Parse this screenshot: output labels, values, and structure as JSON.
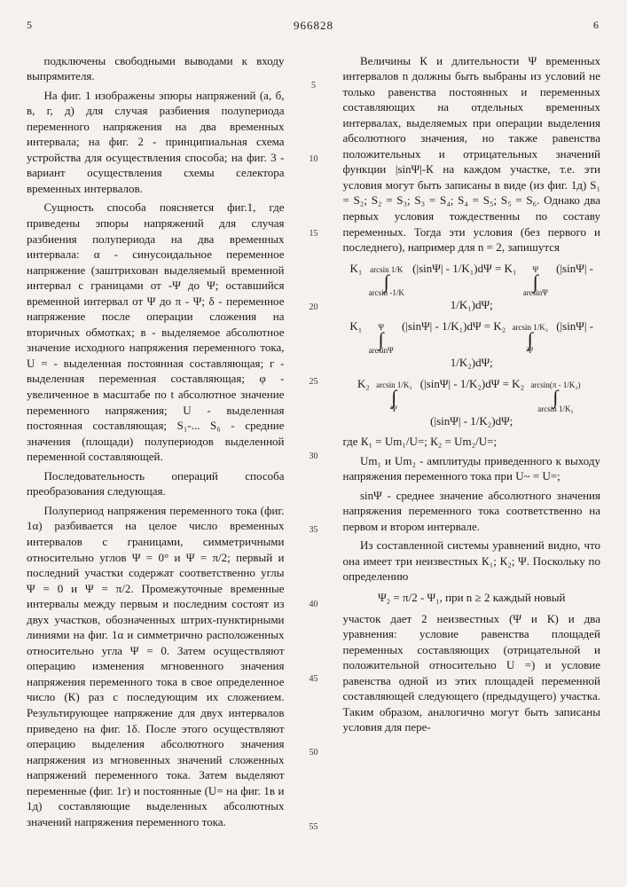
{
  "doc_number": "966828",
  "page_left": "5",
  "page_right": "6",
  "left_col": {
    "p1": "подключены свободными выводами к входу выпрямителя.",
    "p2": "На фиг. 1 изображены эпюры напряжений (а, б, в, г, д) для случая разбиения полупериода переменного напряжения на два временных интервала; на фиг. 2 - принципиальная схема устройства для осуществления способа; на фиг. 3 - вариант осуществления схемы селектора временных интервалов.",
    "p3": "Сущность способа поясняется фиг.1, где приведены эпюры напряжений для случая разбиения полупериода на два временных интервала: α - синусоидальное переменное напряжение (заштрихован выделяемый временной интервал с границами от -Ψ до Ψ; оставшийся временной интервал от Ψ до π - Ψ; δ - переменное напряжение после операции сложения на вторичных обмотках; в - выделяемое абсолютное значение исходного напряжения переменного тока, U = - выделенная постоянная составляющая; г - выделенная переменная составляющая; φ - увеличенное в масштабе по t абсолютное значение переменного напряжения; U - выделенная постоянная составляющая; S₁-... S₆ - средние значения (площади) полупериодов выделенной переменной составляющей.",
    "p4": "Последовательность операций способа преобразования следующая.",
    "p5": "Полупериод напряжения переменного тока (фиг. 1α) разбивается на целое число временных интервалов с границами, симметричными относительно углов Ψ = 0° и Ψ = π/2; первый и последний участки содержат соответственно углы Ψ = 0 и Ψ = π/2. Промежуточные временные интервалы между первым и последним состоят из двух участков, обозначенных штрих-пунктирными линиями на фиг. 1α и симметрично расположенных относительно угла Ψ = 0. Затем осуществляют операцию изменения мгновенного значения напряжения переменного тока в свое определенное число (К) раз с последующим их сложением. Результирующее напряжение для двух интервалов приведено на фиг. 1δ. После этого осуществляют операцию выделения абсолютного значения напряжения из мгновенных значений сложенных напряжений переменного тока. Затем выделяют переменные (фиг. 1г) и постоянные (U= на фиг. 1в и 1д) составляющие выделенных абсолютных значений напряжения переменного тока."
  },
  "right_col": {
    "p1": "Величины К и длительности Ψ временных интервалов n должны быть выбраны из условий не только равенства постоянных и переменных составляющих на отдельных временных интервалах, выделяемых при операции выделения абсолютного значения, но также равенства положительных и отрицательных значений функции |sinΨ|-К на каждом участке, т.е. эти условия могут быть записаны в виде (из фиг. 1д) S₁ = S₂; S₂ = S₃; S₃ = S₄; S₄ = S₅; S₅ = S₆. Однако два первых условия тождественны по составу переменных. Тогда эти условия (без первого и последнего), например для n = 2, запишутся",
    "p2": "где К₁ = Um₁/U=; К₂ = Um₂/U=;",
    "p3": "Um₁ и Um₂ - амплитуды приведенного к выходу напряжения переменного тока при U~ = U=;",
    "p4": "sinΨ - среднее значение абсолютного значения напряжения переменного тока соответственно на первом и втором интервале.",
    "p5": "Из составленной системы уравнений видно, что она имеет три неизвестных К₁; К₂; Ψ. Поскольку по определению",
    "p6": "Ψ₂ = π/2 - Ψ₁, при n ≥ 2 каждый новый",
    "p7": "участок дает 2 неизвестных (Ψ и К) и два уравнения: условие равенства площадей переменных составляющих (отрицательной и положительной относительно U =) и условие равенства одной из этих площадей переменной составляющей следующего (предыдущего) участка. Таким образом, аналогично могут быть записаны условия для пере-"
  },
  "line_numbers": [
    "5",
    "10",
    "15",
    "20",
    "25",
    "30",
    "35",
    "40",
    "45",
    "50",
    "55"
  ],
  "formulas": {
    "f1_lhs_coef": "K₁",
    "f1_lhs_upper": "arcsin 1/K",
    "f1_lhs_lower": "arcsin -1/K",
    "f1_integrand1": "(|sinΨ| - 1/K₁)dΨ",
    "f1_rhs_coef": "= K₁",
    "f1_rhs_upper": "Ψ",
    "f1_rhs_lower": "arcsinΨ",
    "f1_integrand2": "(|sinΨ| - 1/K₁)dΨ;",
    "f2_lhs_coef": "K₁",
    "f2_lhs_upper": "Ψ",
    "f2_lhs_lower": "arcsinΨ",
    "f2_integrand1": "(|sinΨ| - 1/K₁)dΨ",
    "f2_rhs_coef": "= K₂",
    "f2_rhs_upper": "arcsin 1/K₂",
    "f2_rhs_lower": "Ψ",
    "f2_integrand2": "(|sinΨ| - 1/K₂)dΨ;",
    "f3_lhs_coef": "K₂",
    "f3_lhs_upper": "arcsin 1/K₂",
    "f3_lhs_lower": "Ψ",
    "f3_integrand1": "(|sinΨ| - 1/K₂)dΨ",
    "f3_rhs_coef": "= K₂",
    "f3_rhs_upper": "arcsin(π - 1/K₂)",
    "f3_rhs_lower": "arcsin 1/K₂",
    "f3_integrand2": "(|sinΨ| - 1/K₂)dΨ;"
  }
}
